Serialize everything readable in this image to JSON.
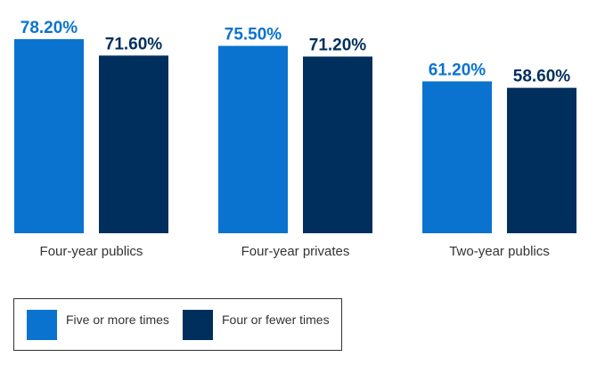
{
  "chart_data": {
    "type": "bar",
    "categories": [
      "Four-year publics",
      "Four-year privates",
      "Two-year publics"
    ],
    "series": [
      {
        "name": "Five or more times",
        "values": [
          78.2,
          75.5,
          61.2
        ],
        "labels": [
          "78.20%",
          "75.50%",
          "61.20%"
        ],
        "color": "#0a73cf"
      },
      {
        "name": "Four or fewer times",
        "values": [
          71.6,
          71.2,
          58.6
        ],
        "labels": [
          "71.60%",
          "71.20%",
          "58.60%"
        ],
        "color": "#012f5d"
      }
    ],
    "ylim": [
      0,
      85
    ],
    "grid": false,
    "legend_position": "bottom-left"
  }
}
